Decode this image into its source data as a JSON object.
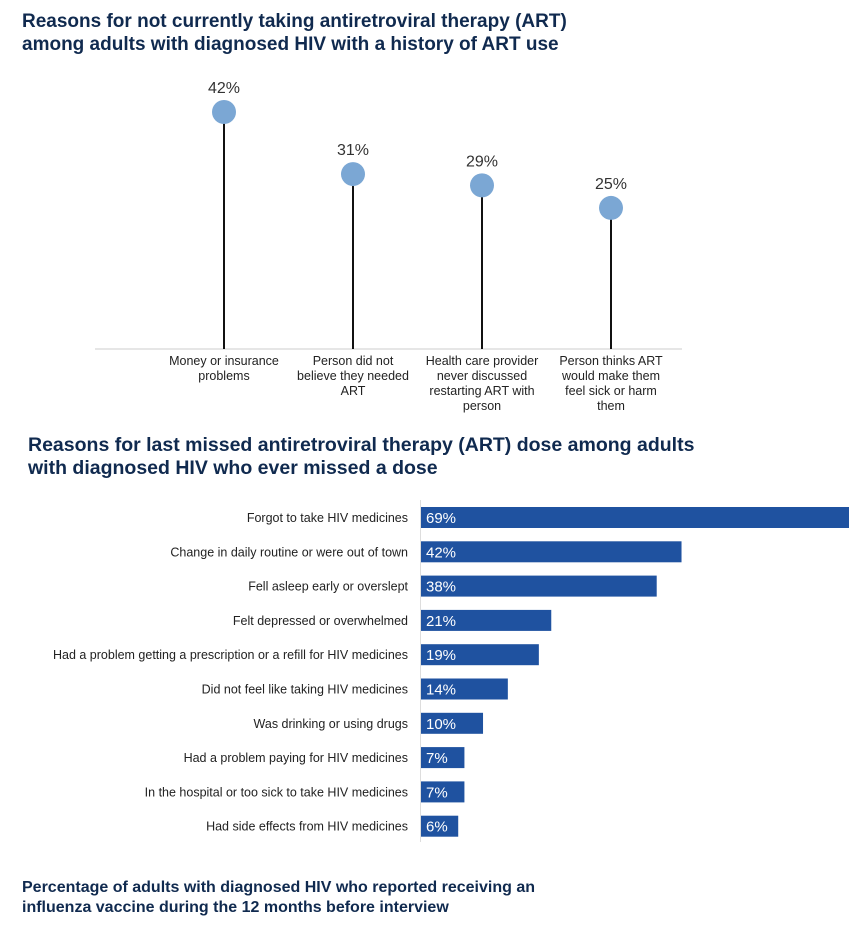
{
  "charts": {
    "title1": "Reasons for not currently taking antiretroviral therapy (ART) among adults with diagnosed HIV with a history of ART use",
    "title2": "Reasons for last missed antiretroviral therapy (ART) dose among adults with diagnosed HIV who ever missed a dose",
    "title3": "Percentage of adults with diagnosed HIV who reported receiving an influenza vaccine during the 12 months before interview"
  },
  "colors": {
    "lollipop": "#7ba7d4",
    "bar": "#1f52a0",
    "title": "#102a4f"
  },
  "chart_data": [
    {
      "type": "lollipop",
      "categories": [
        [
          "Money or insurance",
          "problems"
        ],
        [
          "Person did not",
          "believe they needed",
          "ART"
        ],
        [
          "Health care provider",
          "never discussed",
          "restarting ART with",
          "person"
        ],
        [
          "Person thinks ART",
          "would make them",
          "feel sick or harm",
          "them"
        ]
      ],
      "values": [
        42,
        31,
        29,
        25
      ],
      "value_labels": [
        "42%",
        "31%",
        "29%",
        "25%"
      ],
      "ylim": [
        0,
        100
      ]
    },
    {
      "type": "bar",
      "orientation": "horizontal",
      "categories": [
        "Forgot to take HIV medicines",
        "Change in daily routine or were out of town",
        "Fell asleep early or overslept",
        "Felt depressed or overwhelmed",
        "Had a problem getting a prescription or a refill for HIV medicines",
        "Did not feel like taking HIV medicines",
        "Was drinking or using drugs",
        "Had a problem paying for HIV medicines",
        "In the hospital or too sick to take HIV medicines",
        "Had side effects from HIV medicines"
      ],
      "values": [
        69,
        42,
        38,
        21,
        19,
        14,
        10,
        7,
        7,
        6
      ],
      "value_labels": [
        "69%",
        "42%",
        "38%",
        "21%",
        "19%",
        "14%",
        "10%",
        "7%",
        "7%",
        "6%"
      ]
    }
  ]
}
